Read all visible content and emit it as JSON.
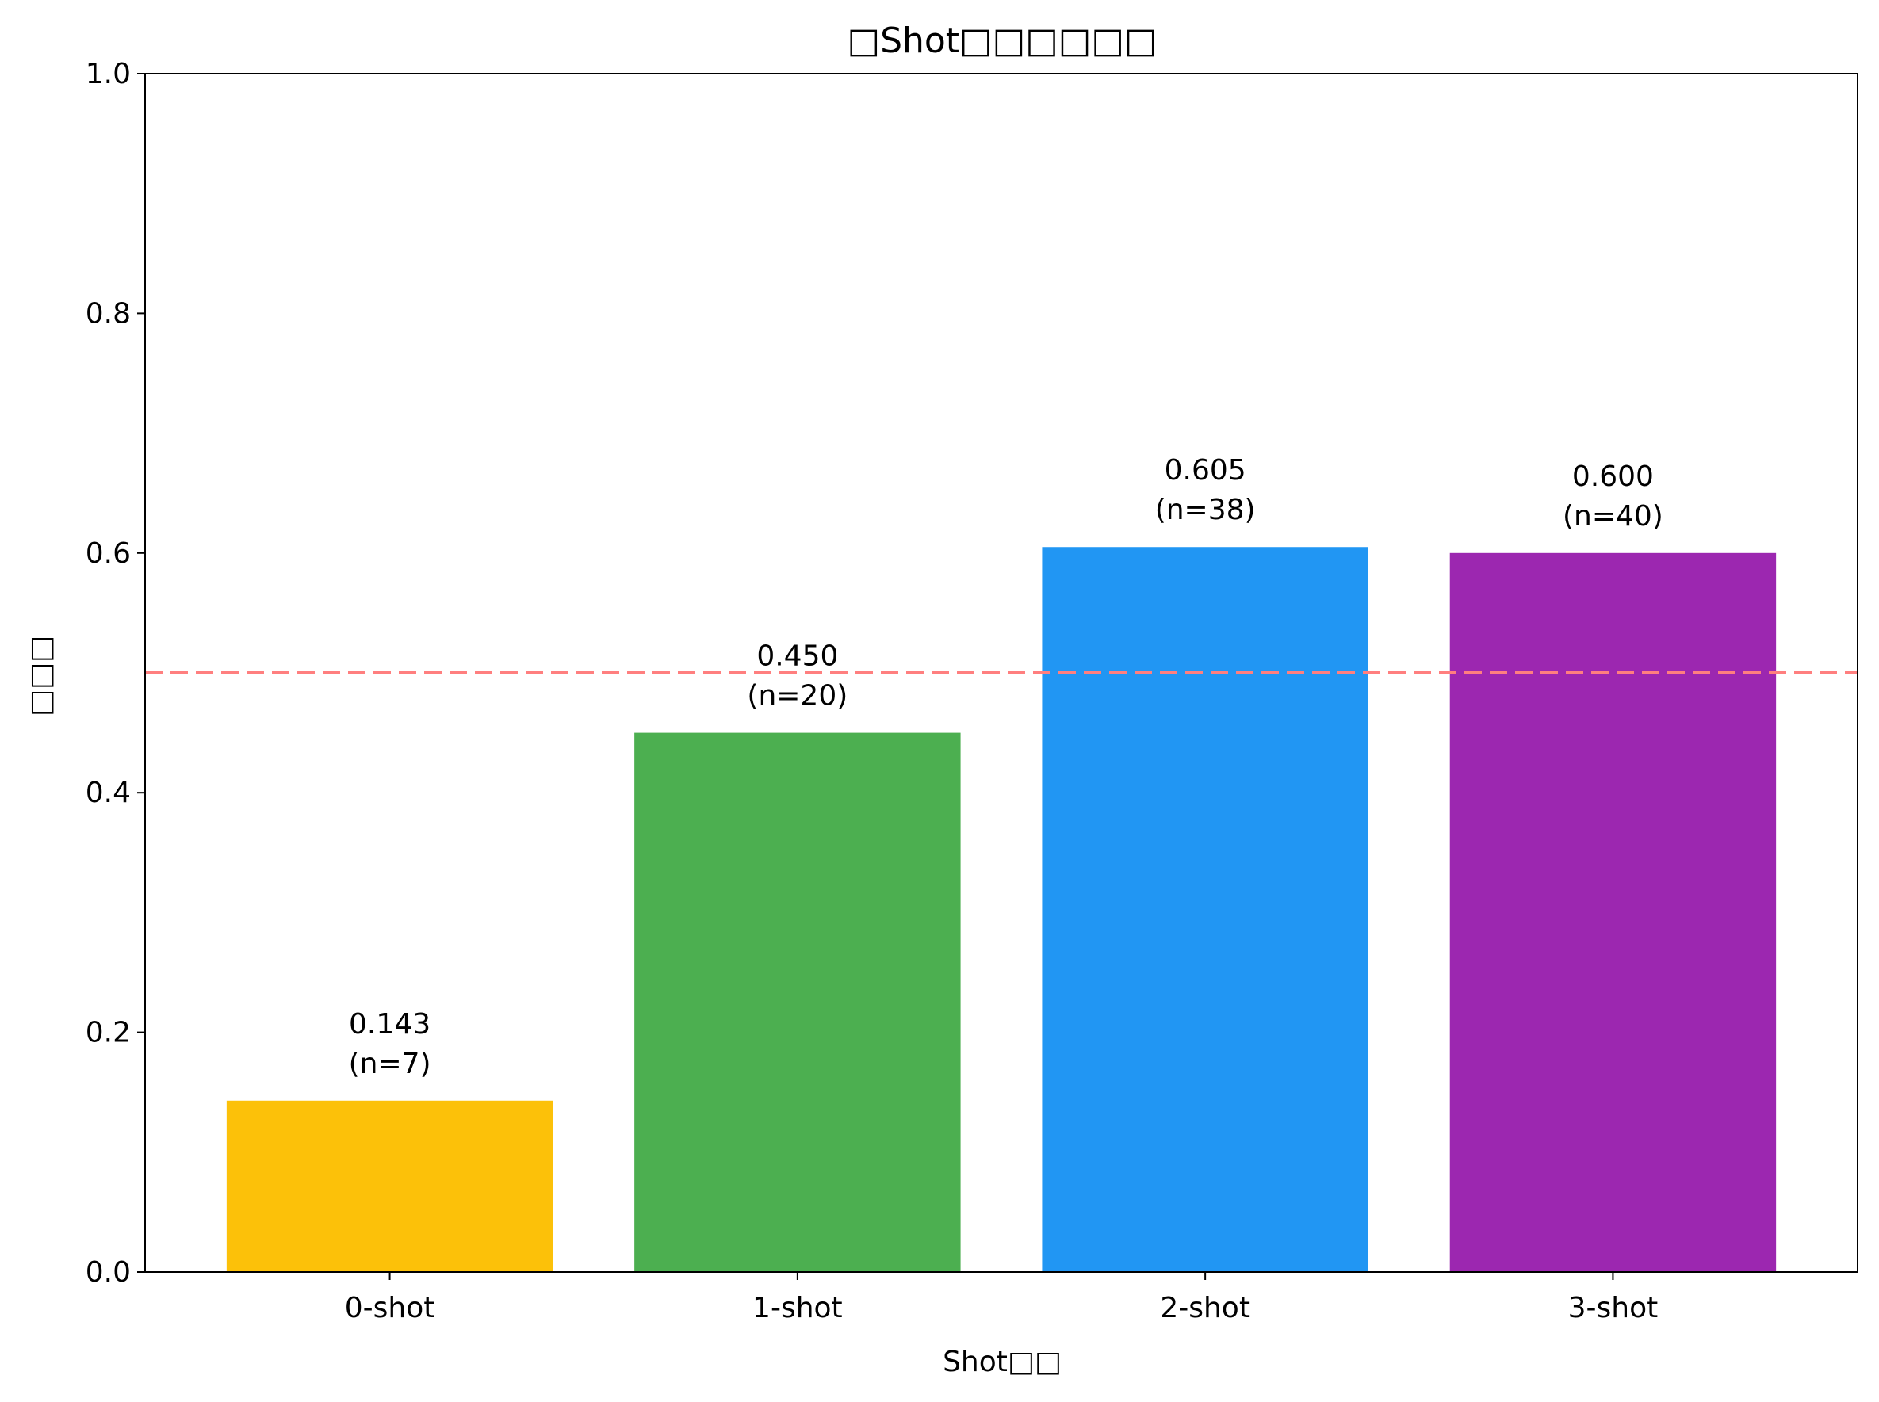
{
  "chart_data": {
    "type": "bar",
    "title": "□Shot□□□□□□",
    "xlabel": "Shot□□",
    "ylabel": "□□□",
    "categories": [
      "0-shot",
      "1-shot",
      "2-shot",
      "3-shot"
    ],
    "values": [
      0.143,
      0.45,
      0.605,
      0.6
    ],
    "value_labels": [
      "0.143",
      "0.450",
      "0.605",
      "0.600"
    ],
    "count_labels": [
      "(n=7)",
      "(n=20)",
      "(n=38)",
      "(n=40)"
    ],
    "colors": [
      "#fcc109",
      "#4caf50",
      "#2196f3",
      "#9c27b0"
    ],
    "ylim": [
      0,
      1.0
    ],
    "yticks": [
      0.0,
      0.2,
      0.4,
      0.6,
      0.8,
      1.0
    ],
    "ytick_labels": [
      "0.0",
      "0.2",
      "0.4",
      "0.6",
      "0.8",
      "1.0"
    ],
    "reference_line": {
      "y": 0.5,
      "color": "#ff7f7f",
      "style": "dashed"
    },
    "grid": false,
    "legend": "none"
  }
}
